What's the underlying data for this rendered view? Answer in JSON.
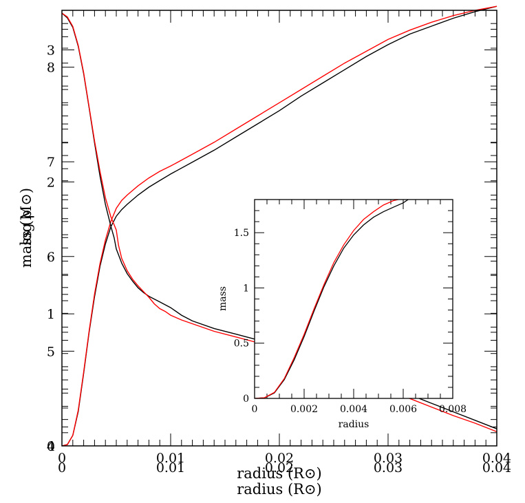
{
  "chart_data": [
    {
      "type": "line",
      "panel": "main-overlay",
      "xlabel": "radius (R⊙)",
      "xlabel_layer2": "radius (R⊙)",
      "x_ticks": [
        "0",
        "0.01",
        "0.02",
        "0.03",
        "0.04"
      ],
      "x_ticks_layer2": [
        "0",
        "0.01",
        "0.02",
        "0.03",
        "0.04"
      ],
      "xlim": [
        0,
        0.04
      ],
      "y_left_label_mass": "mass (M⊙)",
      "y_left_label_density": "log ρ",
      "ylim_mass": [
        0,
        3.3
      ],
      "y_ticks_mass": [
        "0",
        "1",
        "2",
        "3"
      ],
      "ylim_logrho": [
        4,
        8.6
      ],
      "y_ticks_logrho": [
        "4",
        "5",
        "6",
        "7",
        "8"
      ],
      "series": [
        {
          "quantity": "mass",
          "color": "#000000",
          "x": [
            0,
            0.0005,
            0.001,
            0.0015,
            0.002,
            0.0025,
            0.003,
            0.0035,
            0.004,
            0.0045,
            0.005,
            0.0055,
            0.006,
            0.007,
            0.008,
            0.009,
            0.01,
            0.012,
            0.014,
            0.016,
            0.018,
            0.02,
            0.022,
            0.024,
            0.026,
            0.028,
            0.03,
            0.032,
            0.034,
            0.036,
            0.038,
            0.04
          ],
          "y": [
            0,
            0.01,
            0.08,
            0.26,
            0.55,
            0.86,
            1.13,
            1.36,
            1.53,
            1.66,
            1.74,
            1.79,
            1.83,
            1.9,
            1.96,
            2.01,
            2.06,
            2.15,
            2.24,
            2.34,
            2.44,
            2.54,
            2.65,
            2.75,
            2.85,
            2.95,
            3.04,
            3.12,
            3.18,
            3.24,
            3.29,
            3.33
          ]
        },
        {
          "quantity": "mass",
          "color": "#ff0000",
          "x": [
            0,
            0.0005,
            0.001,
            0.0015,
            0.002,
            0.0025,
            0.003,
            0.0035,
            0.004,
            0.0045,
            0.005,
            0.0055,
            0.006,
            0.007,
            0.008,
            0.009,
            0.01,
            0.012,
            0.014,
            0.016,
            0.018,
            0.02,
            0.022,
            0.024,
            0.026,
            0.028,
            0.03,
            0.032,
            0.034,
            0.036,
            0.038,
            0.04
          ],
          "y": [
            0,
            0.01,
            0.08,
            0.27,
            0.56,
            0.87,
            1.15,
            1.38,
            1.56,
            1.7,
            1.8,
            1.86,
            1.9,
            1.97,
            2.03,
            2.08,
            2.12,
            2.21,
            2.3,
            2.4,
            2.5,
            2.6,
            2.7,
            2.8,
            2.9,
            2.99,
            3.08,
            3.15,
            3.21,
            3.26,
            3.3,
            3.33
          ]
        },
        {
          "quantity": "log_rho",
          "color": "#000000",
          "x": [
            0,
            0.0005,
            0.001,
            0.0015,
            0.002,
            0.0025,
            0.003,
            0.0035,
            0.004,
            0.0045,
            0.0048,
            0.005,
            0.0055,
            0.006,
            0.0065,
            0.007,
            0.0075,
            0.008,
            0.009,
            0.01,
            0.011,
            0.012,
            0.014,
            0.016,
            0.018,
            0.02,
            0.022,
            0.024,
            0.026,
            0.028,
            0.03,
            0.032,
            0.034,
            0.036,
            0.038,
            0.04
          ],
          "y": [
            8.57,
            8.52,
            8.42,
            8.22,
            7.93,
            7.57,
            7.2,
            6.85,
            6.55,
            6.32,
            6.2,
            6.08,
            5.93,
            5.82,
            5.74,
            5.67,
            5.62,
            5.58,
            5.52,
            5.46,
            5.38,
            5.32,
            5.24,
            5.18,
            5.12,
            5.06,
            4.98,
            4.9,
            4.81,
            4.72,
            4.63,
            4.54,
            4.45,
            4.36,
            4.27,
            4.18
          ]
        },
        {
          "quantity": "log_rho",
          "color": "#ff0000",
          "x": [
            0,
            0.0005,
            0.001,
            0.0015,
            0.002,
            0.0025,
            0.003,
            0.0035,
            0.004,
            0.0045,
            0.005,
            0.0052,
            0.0055,
            0.006,
            0.0065,
            0.007,
            0.0075,
            0.008,
            0.0085,
            0.009,
            0.0095,
            0.01,
            0.011,
            0.012,
            0.014,
            0.016,
            0.018,
            0.02,
            0.022,
            0.024,
            0.026,
            0.028,
            0.03,
            0.032,
            0.034,
            0.036,
            0.038,
            0.04
          ],
          "y": [
            8.57,
            8.53,
            8.43,
            8.23,
            7.94,
            7.58,
            7.22,
            6.9,
            6.62,
            6.42,
            6.28,
            6.12,
            5.98,
            5.85,
            5.76,
            5.69,
            5.63,
            5.57,
            5.5,
            5.45,
            5.42,
            5.38,
            5.33,
            5.29,
            5.21,
            5.15,
            5.09,
            5.02,
            4.94,
            4.86,
            4.77,
            4.68,
            4.59,
            4.5,
            4.41,
            4.32,
            4.24,
            4.15
          ]
        }
      ]
    },
    {
      "type": "line",
      "panel": "inset",
      "xlabel": "radius",
      "ylabel": "mass",
      "xlim": [
        0,
        0.008
      ],
      "ylim": [
        0,
        1.8
      ],
      "x_ticks": [
        "0",
        "0.002",
        "0.004",
        "0.006",
        "0.008"
      ],
      "y_ticks": [
        "0",
        "0.5",
        "1",
        "1.5"
      ],
      "series": [
        {
          "color": "#000000",
          "x": [
            0,
            0.0004,
            0.0008,
            0.0012,
            0.0016,
            0.002,
            0.0024,
            0.0028,
            0.0032,
            0.0036,
            0.004,
            0.0044,
            0.0048,
            0.0052,
            0.0056,
            0.006,
            0.0062
          ],
          "y": [
            0,
            0.005,
            0.05,
            0.17,
            0.35,
            0.56,
            0.79,
            1.01,
            1.2,
            1.36,
            1.48,
            1.57,
            1.64,
            1.69,
            1.73,
            1.77,
            1.8
          ]
        },
        {
          "color": "#ff0000",
          "x": [
            0,
            0.0004,
            0.0008,
            0.0012,
            0.0016,
            0.002,
            0.0024,
            0.0028,
            0.0032,
            0.0036,
            0.004,
            0.0044,
            0.0048,
            0.0052,
            0.0056,
            0.0058
          ],
          "y": [
            0,
            0.006,
            0.055,
            0.18,
            0.37,
            0.58,
            0.81,
            1.03,
            1.23,
            1.39,
            1.52,
            1.62,
            1.69,
            1.75,
            1.79,
            1.8
          ]
        }
      ]
    }
  ]
}
